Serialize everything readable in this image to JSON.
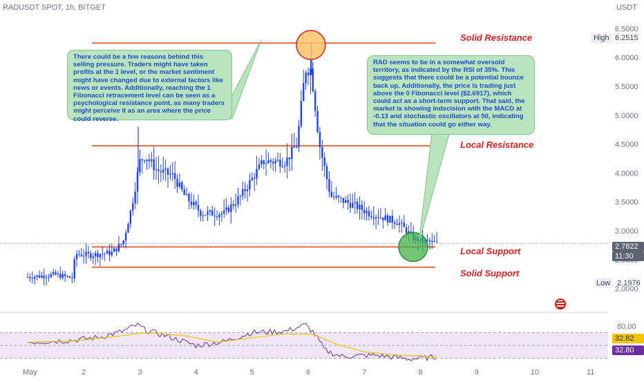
{
  "header": {
    "symbol": "RADUSDT SPOT, 1h, BITGET",
    "currency": "USDT"
  },
  "colors": {
    "candle": "#1e40ff",
    "level": "#f04a12",
    "rsi": "#6b2fa0",
    "rsi_ma": "#f5c400",
    "callout_bg": "#b9e4bd",
    "callout_text": "#1d4ed8",
    "label": "#e02020"
  },
  "annotations": {
    "left_note": "There could be a few reasons behind this selling pressure. Traders might have taken profits at the 1 level, or the market sentiment might have changed due to external factors like news or events. Additionally, reaching the 1 Fibonacci retracement level can be seen as a psychological resistance point, as many traders might perceive it  as an area where the price could reverse.",
    "right_note": "RAD seems to be in a somewhat oversold territory, as indicated by the RSI of 35%. This suggests that  there could be a potential bounce back up. Additionally, the price is trading just above the 0 Fibonacci level ($2.6917), which could act as a short-term support. That said, the market is showing indecision with the MACD at -0.13 and stochastic oscillators at 50, indicating that the situation could go either way."
  },
  "chart_data": {
    "type": "candlestick",
    "x_ticks": [
      "May",
      "2",
      "3",
      "4",
      "5",
      "6",
      "7",
      "8",
      "9",
      "10",
      "11"
    ],
    "y_ticks": [
      "6.5000",
      "6.0000",
      "5.5000",
      "5.0000",
      "4.5000",
      "4.0000",
      "3.5000",
      "3.0000",
      "2.5000",
      "2.0000"
    ],
    "ylim": [
      1.9,
      6.6
    ],
    "grid": false,
    "levels": [
      {
        "name": "Solid Resistance",
        "value": 6.25
      },
      {
        "name": "Local Resistance",
        "value": 4.47
      },
      {
        "name": "Local Support",
        "value": 2.72
      },
      {
        "name": "Solid Support",
        "value": 2.37
      }
    ],
    "high": {
      "label": "High",
      "value": "6.2515",
      "num": 6.2515
    },
    "low": {
      "label": "Low",
      "value": "2.1976",
      "num": 2.1976
    },
    "last": {
      "value": "2.7822",
      "num": 2.7822,
      "countdown": "11:30"
    },
    "price_path": [
      [
        0.0,
        2.2
      ],
      [
        0.5,
        2.24
      ],
      [
        0.8,
        2.18
      ],
      [
        0.85,
        2.6
      ],
      [
        1.1,
        2.58
      ],
      [
        1.5,
        2.62
      ],
      [
        1.7,
        2.8
      ],
      [
        1.85,
        3.4
      ],
      [
        2.0,
        4.2
      ],
      [
        2.1,
        4.3
      ],
      [
        2.3,
        4.05
      ],
      [
        2.6,
        3.95
      ],
      [
        2.8,
        3.6
      ],
      [
        3.1,
        3.3
      ],
      [
        3.5,
        3.3
      ],
      [
        3.8,
        3.6
      ],
      [
        4.2,
        4.2
      ],
      [
        4.6,
        4.2
      ],
      [
        4.8,
        4.5
      ],
      [
        4.95,
        5.8
      ],
      [
        5.05,
        5.8
      ],
      [
        5.2,
        4.5
      ],
      [
        5.4,
        3.6
      ],
      [
        5.8,
        3.45
      ],
      [
        6.1,
        3.3
      ],
      [
        6.6,
        3.15
      ],
      [
        6.9,
        2.85
      ],
      [
        7.3,
        2.78
      ]
    ],
    "spike": {
      "day": 5.06,
      "high": 6.2515,
      "low": 5.7
    },
    "tall_wick": {
      "day": 1.97,
      "high": 4.8,
      "low": 4.0
    },
    "rsi": {
      "ticks": [
        "80.00"
      ],
      "ylim": [
        20,
        95
      ],
      "band": [
        30,
        70
      ],
      "rsi_value": "32.82",
      "ma_value": "32.80",
      "path": [
        [
          0.0,
          55
        ],
        [
          0.8,
          58
        ],
        [
          1.3,
          63
        ],
        [
          1.7,
          72
        ],
        [
          1.95,
          82
        ],
        [
          2.1,
          74
        ],
        [
          2.5,
          64
        ],
        [
          3.0,
          50
        ],
        [
          3.5,
          56
        ],
        [
          4.0,
          70
        ],
        [
          4.6,
          72
        ],
        [
          4.95,
          82
        ],
        [
          5.1,
          70
        ],
        [
          5.3,
          42
        ],
        [
          5.6,
          33
        ],
        [
          6.2,
          35
        ],
        [
          6.8,
          29
        ],
        [
          7.3,
          32
        ]
      ],
      "ma_path": [
        [
          0.0,
          55
        ],
        [
          0.8,
          57
        ],
        [
          1.5,
          63
        ],
        [
          2.1,
          70
        ],
        [
          2.8,
          65
        ],
        [
          3.4,
          55
        ],
        [
          4.0,
          62
        ],
        [
          4.6,
          68
        ],
        [
          5.1,
          67
        ],
        [
          5.5,
          52
        ],
        [
          6.0,
          40
        ],
        [
          6.6,
          35
        ],
        [
          7.3,
          32.8
        ]
      ]
    }
  }
}
